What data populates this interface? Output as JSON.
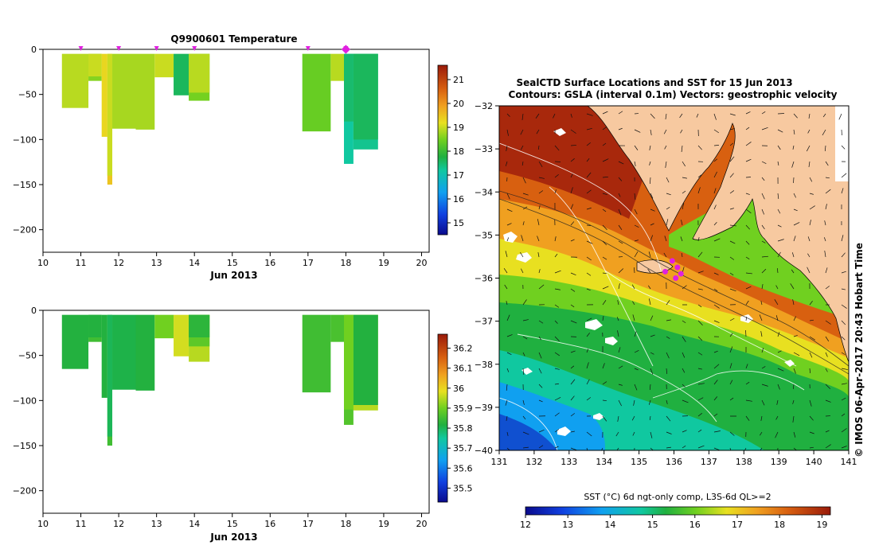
{
  "colors": {
    "land": "#f7c9a0",
    "marker": "#e020e0",
    "contour": "#ffffff",
    "vector": "#111111"
  },
  "chart_data": [
    {
      "id": "temperature-profiles",
      "type": "heatmap",
      "title": "Q9900601  Temperature",
      "xlabel": "Jun 2013",
      "xlim": [
        10,
        20.2
      ],
      "ylim": [
        -225,
        0
      ],
      "xticks": [
        10,
        11,
        12,
        13,
        14,
        15,
        16,
        17,
        18,
        19,
        20
      ],
      "yticks": [
        0,
        -50,
        -100,
        -150,
        -200
      ],
      "profile_markers": [
        11,
        12,
        13,
        14,
        17,
        18
      ],
      "highlight_marker": 18,
      "colorbar": {
        "min": 14.5,
        "max": 21.6,
        "ticks": [
          15,
          16,
          17,
          18,
          19,
          20,
          21
        ]
      },
      "profiles": [
        {
          "x0": 10.5,
          "x1": 11.2,
          "depth": 65,
          "value": 18.9
        },
        {
          "x0": 11.2,
          "x1": 11.55,
          "depth": 35,
          "value": 18.6
        },
        {
          "x0": 11.2,
          "x1": 11.55,
          "depth": 30,
          "value": 19.0
        },
        {
          "x0": 11.55,
          "x1": 11.7,
          "depth": 97,
          "value": 19.3
        },
        {
          "x0": 11.7,
          "x1": 11.83,
          "depth": 150,
          "value": 19.5
        },
        {
          "x0": 11.7,
          "x1": 11.83,
          "depth": 140,
          "value": 19.0
        },
        {
          "x0": 11.83,
          "x1": 12.45,
          "depth": 88,
          "value": 18.8
        },
        {
          "x0": 12.45,
          "x1": 12.95,
          "depth": 89,
          "value": 18.8
        },
        {
          "x0": 12.95,
          "x1": 13.45,
          "depth": 31,
          "value": 19.0
        },
        {
          "x0": 13.45,
          "x1": 13.85,
          "depth": 51,
          "value": 17.6
        },
        {
          "x0": 13.85,
          "x1": 14.4,
          "depth": 57,
          "value": 18.5
        },
        {
          "x0": 13.85,
          "x1": 14.4,
          "depth": 48,
          "value": 18.9
        },
        {
          "x0": 16.85,
          "x1": 17.6,
          "depth": 91,
          "value": 18.4
        },
        {
          "x0": 17.6,
          "x1": 17.95,
          "depth": 35,
          "value": 18.9
        },
        {
          "x0": 17.95,
          "x1": 18.2,
          "depth": 127,
          "value": 17.2
        },
        {
          "x0": 17.95,
          "x1": 18.2,
          "depth": 80,
          "value": 17.5
        },
        {
          "x0": 18.2,
          "x1": 18.85,
          "depth": 111,
          "value": 17.3
        },
        {
          "x0": 18.2,
          "x1": 18.85,
          "depth": 100,
          "value": 17.6
        }
      ]
    },
    {
      "id": "salinity-profiles",
      "type": "heatmap",
      "title": "",
      "xlabel": "Jun 2013",
      "xlim": [
        10,
        20.2
      ],
      "ylim": [
        -225,
        0
      ],
      "xticks": [
        10,
        11,
        12,
        13,
        14,
        15,
        16,
        17,
        18,
        19,
        20
      ],
      "yticks": [
        0,
        -50,
        -100,
        -150,
        -200
      ],
      "colorbar": {
        "min": 35.43,
        "max": 36.27,
        "ticks": [
          35.5,
          35.6,
          35.7,
          35.8,
          35.9,
          36,
          36.1,
          36.2
        ]
      },
      "profiles": [
        {
          "x0": 10.5,
          "x1": 11.2,
          "depth": 65,
          "value": 35.82
        },
        {
          "x0": 11.2,
          "x1": 11.55,
          "depth": 35,
          "value": 35.85
        },
        {
          "x0": 11.2,
          "x1": 11.55,
          "depth": 30,
          "value": 35.82
        },
        {
          "x0": 11.55,
          "x1": 11.7,
          "depth": 97,
          "value": 35.82
        },
        {
          "x0": 11.7,
          "x1": 11.83,
          "depth": 150,
          "value": 35.85
        },
        {
          "x0": 11.7,
          "x1": 11.83,
          "depth": 140,
          "value": 35.8
        },
        {
          "x0": 11.83,
          "x1": 12.45,
          "depth": 88,
          "value": 35.81
        },
        {
          "x0": 12.45,
          "x1": 12.95,
          "depth": 89,
          "value": 35.82
        },
        {
          "x0": 12.95,
          "x1": 13.45,
          "depth": 31,
          "value": 35.9
        },
        {
          "x0": 13.45,
          "x1": 13.85,
          "depth": 51,
          "value": 35.97
        },
        {
          "x0": 13.85,
          "x1": 14.4,
          "depth": 57,
          "value": 35.95
        },
        {
          "x0": 13.85,
          "x1": 14.4,
          "depth": 40,
          "value": 35.88
        },
        {
          "x0": 13.85,
          "x1": 14.4,
          "depth": 30,
          "value": 35.83
        },
        {
          "x0": 16.85,
          "x1": 17.6,
          "depth": 91,
          "value": 35.85
        },
        {
          "x0": 17.6,
          "x1": 17.95,
          "depth": 35,
          "value": 35.86
        },
        {
          "x0": 17.95,
          "x1": 18.2,
          "depth": 127,
          "value": 35.87
        },
        {
          "x0": 17.95,
          "x1": 18.2,
          "depth": 110,
          "value": 35.9
        },
        {
          "x0": 18.2,
          "x1": 18.85,
          "depth": 111,
          "value": 35.95
        },
        {
          "x0": 18.2,
          "x1": 18.85,
          "depth": 105,
          "value": 35.82
        }
      ]
    },
    {
      "id": "sst-map",
      "type": "heatmap",
      "title": "SealCTD Surface Locations and SST for 15 Jun 2013",
      "subtitle": "Contours: GSLA (interval 0.1m) Vectors: geostrophic velocity",
      "xlim": [
        131,
        141
      ],
      "ylim": [
        -40,
        -32
      ],
      "xticks": [
        131,
        132,
        133,
        134,
        135,
        136,
        137,
        138,
        139,
        140,
        141
      ],
      "yticks": [
        -32,
        -33,
        -34,
        -35,
        -36,
        -37,
        -38,
        -39,
        -40
      ],
      "colorbar": {
        "label": "SST (°C) 6d ngt-only comp, L3S-6d QL>=2",
        "min": 12,
        "max": 19.2,
        "ticks": [
          12,
          13,
          14,
          15,
          16,
          17,
          18,
          19
        ]
      },
      "seal_positions": [
        {
          "lon": 135.75,
          "lat": -35.85
        },
        {
          "lon": 135.95,
          "lat": -35.6
        },
        {
          "lon": 136.1,
          "lat": -35.75
        },
        {
          "lon": 136.05,
          "lat": -36.0
        },
        {
          "lon": 136.2,
          "lat": -35.9
        }
      ],
      "side_label": "© IMOS 06-Apr-2017 20:43 Hobart Time"
    }
  ]
}
